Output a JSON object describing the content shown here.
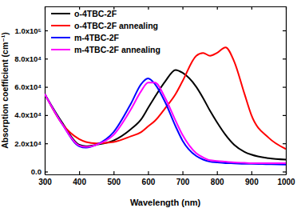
{
  "chart_data": {
    "type": "line",
    "x_label": "Wavelength (nm)",
    "y_label": "Absorption coefficient (cm⁻¹)",
    "x": [
      300,
      350,
      400,
      420,
      450,
      500,
      550,
      580,
      600,
      620,
      650,
      680,
      700,
      740,
      760,
      780,
      800,
      825,
      850,
      880,
      900,
      950,
      1000
    ],
    "series": [
      {
        "name": "o-4TBC-2F",
        "color": "#000000",
        "values": [
          55000,
          35000,
          19000,
          18000,
          19000,
          22000,
          30000,
          37000,
          45000,
          53000,
          64000,
          72000,
          70000,
          60000,
          52000,
          43000,
          35000,
          26000,
          19000,
          14000,
          12000,
          9500,
          8500
        ]
      },
      {
        "name": "o-4TBC-2F annealing",
        "color": "#ff0000",
        "values": [
          55000,
          34000,
          23000,
          21000,
          20000,
          21000,
          25000,
          28000,
          32000,
          36000,
          45000,
          55000,
          64000,
          82000,
          84000,
          82000,
          84000,
          88000,
          78000,
          55000,
          40000,
          24000,
          16000
        ]
      },
      {
        "name": "m-4TBC-2F",
        "color": "#0000ff",
        "values": [
          55000,
          34000,
          18000,
          17000,
          19000,
          28000,
          48000,
          62000,
          66000,
          62000,
          49000,
          32000,
          22000,
          11000,
          8500,
          7000,
          6500,
          6000,
          5800,
          5500,
          5500,
          5200,
          5000
        ]
      },
      {
        "name": "m-4TBC-2F annealing",
        "color": "#ff00ff",
        "values": [
          55000,
          34000,
          18500,
          17500,
          19000,
          26000,
          44000,
          57000,
          63000,
          63000,
          52000,
          36000,
          26000,
          13000,
          10000,
          8000,
          7500,
          7000,
          6500,
          6200,
          6000,
          6000,
          6000
        ]
      }
    ],
    "xlim": [
      300,
      1000
    ],
    "xticks": [
      300,
      400,
      500,
      600,
      700,
      800,
      900,
      1000
    ],
    "ylim": [
      -2000,
      117000
    ],
    "yticks": [
      {
        "value": 0,
        "label": "0.0"
      },
      {
        "value": 20000,
        "label": "2.0x10⁴"
      },
      {
        "value": 40000,
        "label": "4.0x10⁴"
      },
      {
        "value": 60000,
        "label": "6.0x10⁴"
      },
      {
        "value": 80000,
        "label": "8.0x10⁴"
      },
      {
        "value": 100000,
        "label": "1.0x10⁵"
      }
    ],
    "legend": "upper left",
    "grid": false
  }
}
